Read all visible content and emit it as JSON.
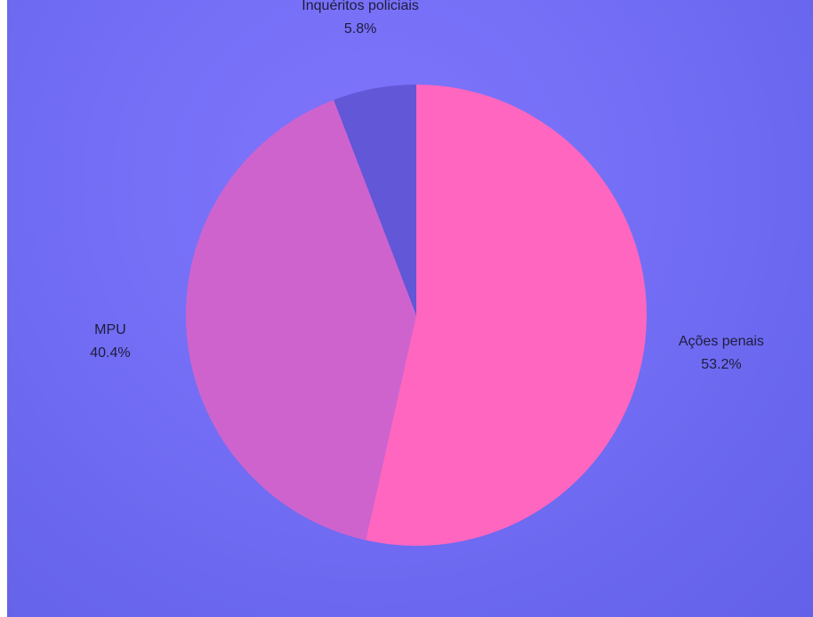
{
  "chart_data": {
    "type": "pie",
    "title": "",
    "start_angle_deg": 0,
    "direction": "clockwise",
    "slices": [
      {
        "label": "Ações penais",
        "value": 53.2,
        "display": "53.2%",
        "color": "#ff66bf"
      },
      {
        "label": "MPU",
        "value": 40.4,
        "display": "40.4%",
        "color": "#cf63cd"
      },
      {
        "label": "Inquéritos policiais",
        "value": 5.8,
        "display": "5.8%",
        "color": "#6157d7"
      }
    ],
    "background_color": "#7670f7",
    "legend": "none"
  }
}
